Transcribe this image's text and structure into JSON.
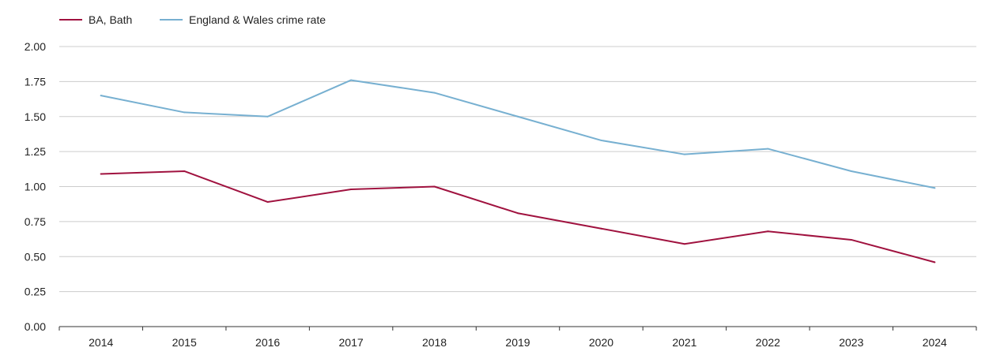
{
  "chart_data": {
    "type": "line",
    "title": "",
    "xlabel": "",
    "ylabel": "",
    "categories": [
      "2014",
      "2015",
      "2016",
      "2017",
      "2018",
      "2019",
      "2020",
      "2021",
      "2022",
      "2023",
      "2024"
    ],
    "ylim": [
      0,
      2
    ],
    "yticks": [
      "0.00",
      "0.25",
      "0.50",
      "0.75",
      "1.00",
      "1.25",
      "1.50",
      "1.75",
      "2.00"
    ],
    "legend_position": "top-left",
    "grid": true,
    "series": [
      {
        "name": "BA, Bath",
        "color": "#a0123f",
        "values": [
          1.09,
          1.11,
          0.89,
          0.98,
          1.0,
          0.81,
          0.7,
          0.59,
          0.68,
          0.62,
          0.46
        ]
      },
      {
        "name": "England & Wales crime rate",
        "color": "#77b0d1",
        "values": [
          1.65,
          1.53,
          1.5,
          1.76,
          1.67,
          1.5,
          1.33,
          1.23,
          1.27,
          1.11,
          0.99
        ]
      }
    ]
  }
}
